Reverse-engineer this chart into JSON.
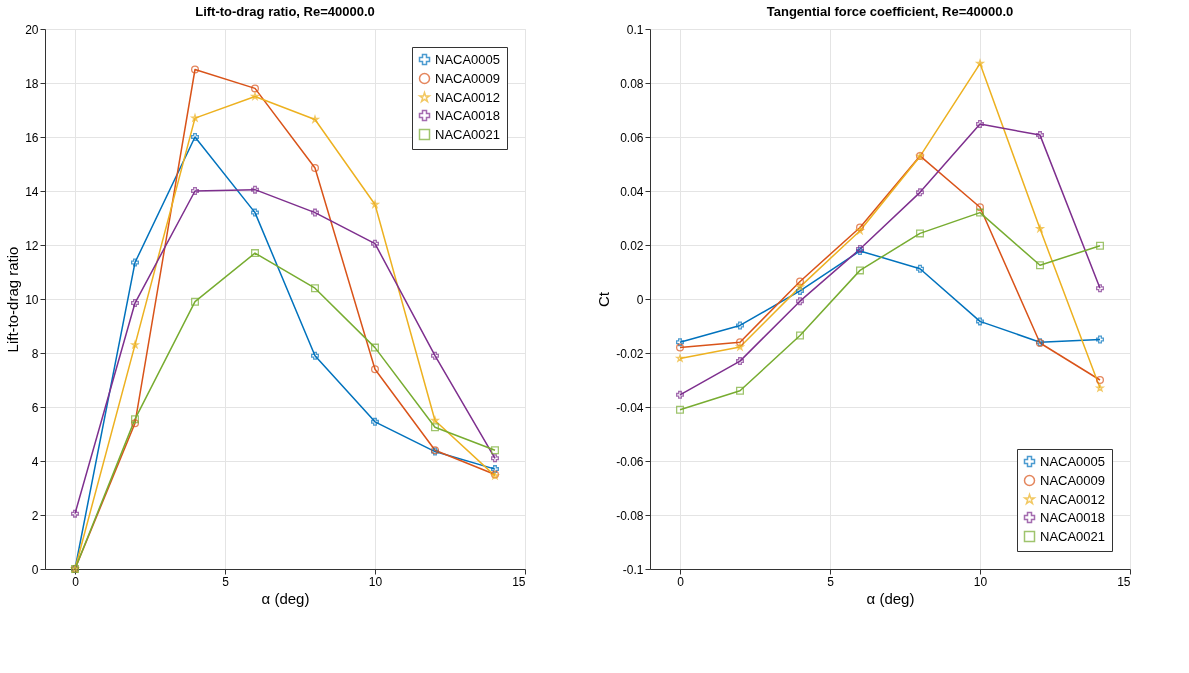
{
  "chart_data": [
    {
      "type": "line",
      "title": "Lift-to-drag ratio, Re=40000.0",
      "xlabel": "α (deg)",
      "ylabel": "Lift-to-drag ratio",
      "x": [
        0,
        2,
        4,
        6,
        8,
        10,
        12,
        14
      ],
      "xlim": [
        -1,
        15
      ],
      "xticks": [
        0,
        5,
        10,
        15
      ],
      "ylim": [
        0,
        20
      ],
      "yticks": [
        0,
        2,
        4,
        6,
        8,
        10,
        12,
        14,
        16,
        18,
        20
      ],
      "grid": true,
      "legend": "top right",
      "line_style": "solid",
      "series": [
        {
          "name": "NACA0005",
          "color": "#0072bd",
          "marker": "cross",
          "values": [
            0,
            11.35,
            16.0,
            13.2,
            7.9,
            5.45,
            4.35,
            3.7
          ]
        },
        {
          "name": "NACA0009",
          "color": "#d95319",
          "marker": "circle",
          "values": [
            0,
            5.4,
            18.5,
            17.8,
            14.85,
            7.4,
            4.4,
            3.5
          ]
        },
        {
          "name": "NACA0012",
          "color": "#edb120",
          "marker": "star",
          "values": [
            0,
            8.3,
            16.7,
            17.5,
            16.65,
            13.5,
            5.5,
            3.45
          ]
        },
        {
          "name": "NACA0018",
          "color": "#7e2f8e",
          "marker": "cross",
          "values": [
            2.05,
            9.85,
            14.0,
            14.05,
            13.2,
            12.05,
            7.9,
            4.1
          ]
        },
        {
          "name": "NACA0021",
          "color": "#77ac30",
          "marker": "square",
          "values": [
            0,
            5.55,
            9.9,
            11.7,
            10.4,
            8.2,
            5.25,
            4.4
          ]
        }
      ]
    },
    {
      "type": "line",
      "title": "Tangential force coefficient, Re=40000.0",
      "xlabel": "α (deg)",
      "ylabel": "Ct",
      "x": [
        0,
        2,
        4,
        6,
        8,
        10,
        12,
        14
      ],
      "xlim": [
        -1,
        15
      ],
      "xticks": [
        0,
        5,
        10,
        15
      ],
      "ylim": [
        -0.1,
        0.1
      ],
      "yticks": [
        -0.1,
        -0.08,
        -0.06,
        -0.04,
        -0.02,
        0,
        0.02,
        0.04,
        0.06,
        0.08,
        0.1
      ],
      "grid": true,
      "legend": "bottom right",
      "line_style": "solid",
      "series": [
        {
          "name": "NACA0005",
          "color": "#0072bd",
          "marker": "cross",
          "values": [
            -0.016,
            -0.0098,
            0.003,
            0.0178,
            0.0112,
            -0.0083,
            -0.016,
            -0.015
          ]
        },
        {
          "name": "NACA0009",
          "color": "#d95319",
          "marker": "circle",
          "values": [
            -0.018,
            -0.016,
            0.0065,
            0.0265,
            0.053,
            0.034,
            -0.0163,
            -0.03
          ]
        },
        {
          "name": "NACA0012",
          "color": "#edb120",
          "marker": "star",
          "values": [
            -0.022,
            -0.0178,
            0.0045,
            0.0253,
            0.0528,
            0.0872,
            0.026,
            -0.033
          ]
        },
        {
          "name": "NACA0018",
          "color": "#7e2f8e",
          "marker": "cross",
          "values": [
            -0.0355,
            -0.023,
            -0.0008,
            0.0185,
            0.0395,
            0.0648,
            0.0607,
            0.004
          ]
        },
        {
          "name": "NACA0021",
          "color": "#77ac30",
          "marker": "square",
          "values": [
            -0.041,
            -0.034,
            -0.0135,
            0.0106,
            0.0243,
            0.032,
            0.0125,
            0.0197
          ]
        }
      ]
    }
  ]
}
